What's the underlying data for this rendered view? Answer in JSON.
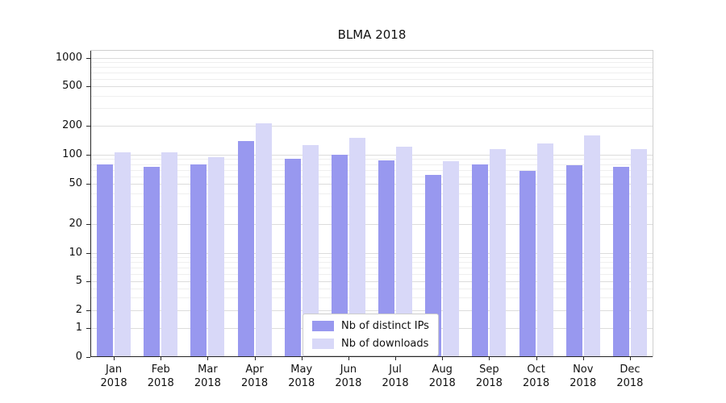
{
  "chart_data": {
    "type": "bar",
    "title": "BLMA 2018",
    "categories": [
      "Jan 2018",
      "Feb 2018",
      "Mar 2018",
      "Apr 2018",
      "May 2018",
      "Jun 2018",
      "Jul 2018",
      "Aug 2018",
      "Sep 2018",
      "Oct 2018",
      "Nov 2018",
      "Dec 2018"
    ],
    "series": [
      {
        "name": "Nb of distinct IPs",
        "color": "#9898ef",
        "values": [
          80,
          75,
          80,
          140,
          90,
          100,
          88,
          62,
          80,
          68,
          78,
          75
        ]
      },
      {
        "name": "Nb of downloads",
        "color": "#d8d8f8",
        "values": [
          105,
          105,
          95,
          210,
          125,
          150,
          122,
          86,
          115,
          130,
          160,
          115
        ]
      }
    ],
    "xlabel": "",
    "ylabel": "",
    "yscale": "symlog",
    "ylim": [
      0,
      1000
    ],
    "yticks": [
      0,
      1,
      2,
      5,
      10,
      20,
      50,
      100,
      200,
      500,
      1000
    ],
    "minor_gridline_values": [
      3,
      4,
      6,
      7,
      8,
      9,
      30,
      40,
      60,
      70,
      80,
      90,
      300,
      400,
      600,
      700,
      800,
      900
    ],
    "grid": "on",
    "legend_position": "lower center"
  },
  "colors": {
    "background": "#ffffff",
    "major_grid": "#dcdcdc",
    "minor_grid": "#efefef",
    "spine": "#262626"
  }
}
